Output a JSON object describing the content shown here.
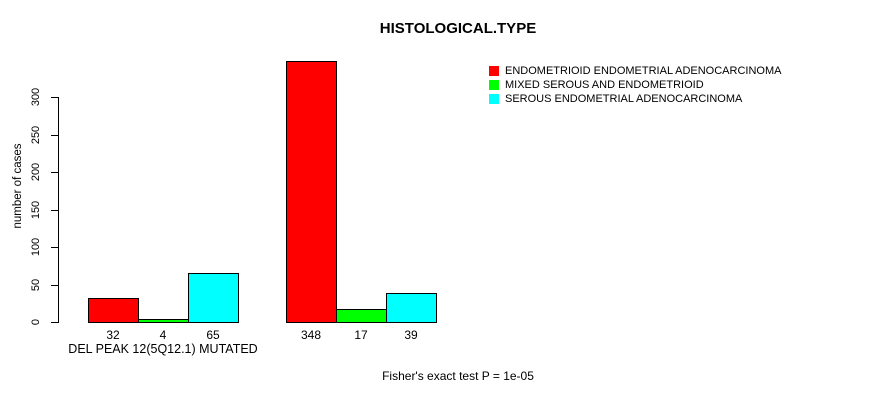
{
  "chart_data": {
    "type": "bar",
    "title": "HISTOLOGICAL.TYPE",
    "ylabel": "number of cases",
    "xlabel": "",
    "categories": [
      "DEL PEAK 12(5Q12.1) MUTATED",
      ""
    ],
    "series": [
      {
        "name": "ENDOMETRIOID ENDOMETRIAL ADENOCARCINOMA",
        "color": "#FF0000",
        "values": [
          32,
          348
        ]
      },
      {
        "name": "MIXED SEROUS AND ENDOMETRIOID",
        "color": "#00FF00",
        "values": [
          4,
          17
        ]
      },
      {
        "name": "SEROUS ENDOMETRIAL ADENOCARCINOMA",
        "color": "#00FFFF",
        "values": [
          65,
          39
        ]
      }
    ],
    "bar_value_labels": [
      [
        "32",
        "4",
        "65"
      ],
      [
        "348",
        "17",
        "39"
      ]
    ],
    "yticks": [
      0,
      50,
      100,
      150,
      200,
      250,
      300
    ],
    "ylim": [
      0,
      350
    ],
    "grid": false,
    "legend_position": "top-right",
    "annotation": "Fisher's exact test P = 1e-05"
  }
}
